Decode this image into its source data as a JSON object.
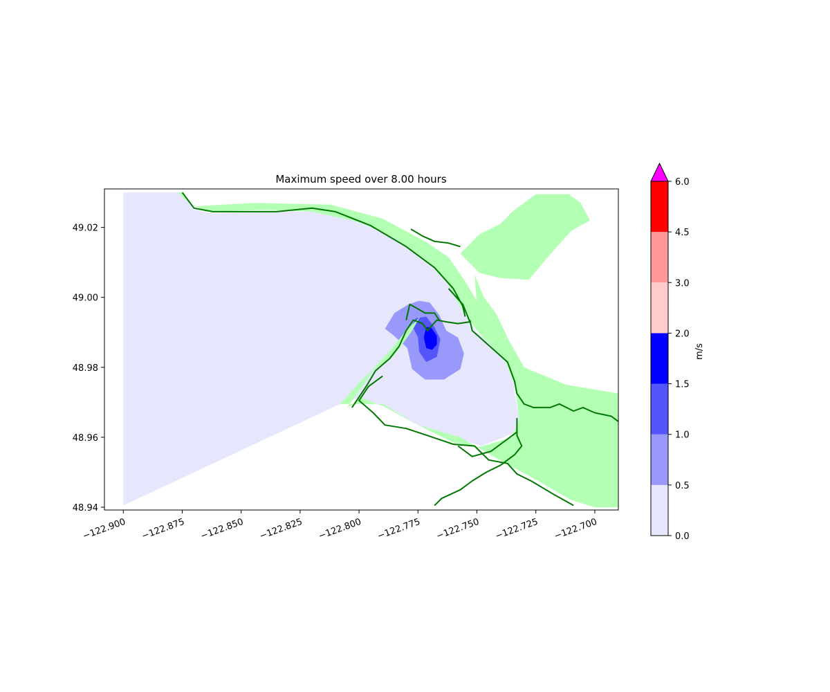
{
  "chart_data": {
    "type": "heatmap",
    "title": "Maximum speed over 8.00 hours",
    "xlabel": "",
    "ylabel": "",
    "xlim": [
      -122.908,
      -122.69
    ],
    "ylim": [
      48.9392,
      49.031
    ],
    "x_ticks": [
      -122.9,
      -122.875,
      -122.85,
      -122.825,
      -122.8,
      -122.775,
      -122.75,
      -122.725,
      -122.7
    ],
    "x_tick_labels": [
      "−122.900",
      "−122.875",
      "−122.850",
      "−122.825",
      "−122.800",
      "−122.775",
      "−122.750",
      "−122.725",
      "−122.700"
    ],
    "y_ticks": [
      48.94,
      48.96,
      48.98,
      49.0,
      49.02
    ],
    "y_tick_labels": [
      "48.94",
      "48.96",
      "48.98",
      "49.00",
      "49.02"
    ],
    "grid": false,
    "colorbar": {
      "label": "m/s",
      "boundaries": [
        0.0,
        0.5,
        1.0,
        1.5,
        2.0,
        3.0,
        4.5,
        6.0
      ],
      "tick_labels": [
        "0.0",
        "0.5",
        "1.0",
        "1.5",
        "2.0",
        "3.0",
        "4.5",
        "6.0"
      ],
      "colors": [
        "#e6e6fc",
        "#9999fc",
        "#5555fc",
        "#0000ff",
        "#ffcccc",
        "#ff9999",
        "#ff0000"
      ],
      "extend_color": "#ff00ff"
    },
    "land_color": "#b3ffb3",
    "shoreline_color": "#007700",
    "levels": [
      {
        "range": "0.0-0.5",
        "color": "#e6e6fc",
        "polygon": [
          [
            -122.9,
            49.03
          ],
          [
            -122.875,
            49.03
          ],
          [
            -122.87,
            49.025
          ],
          [
            -122.862,
            49.024
          ],
          [
            -122.835,
            49.0245
          ],
          [
            -122.81,
            49.0245
          ],
          [
            -122.79,
            49.0205
          ],
          [
            -122.775,
            49.0135
          ],
          [
            -122.766,
            49.0085
          ],
          [
            -122.76,
            49.0025
          ],
          [
            -122.755,
            48.995
          ],
          [
            -122.75,
            48.99
          ],
          [
            -122.735,
            48.9815
          ],
          [
            -122.734,
            48.9725
          ],
          [
            -122.732,
            48.9655
          ],
          [
            -122.733,
            48.9615
          ],
          [
            -122.748,
            48.9575
          ],
          [
            -122.775,
            48.9635
          ],
          [
            -122.79,
            48.969
          ],
          [
            -122.802,
            48.971
          ],
          [
            -122.808,
            48.9695
          ],
          [
            -122.9,
            48.9405
          ]
        ]
      },
      {
        "range": "0.5-1.0",
        "color": "#9999fc",
        "polygon": [
          [
            -122.789,
            48.991
          ],
          [
            -122.785,
            48.9955
          ],
          [
            -122.779,
            48.998
          ],
          [
            -122.7745,
            48.999
          ],
          [
            -122.77,
            48.9985
          ],
          [
            -122.766,
            48.995
          ],
          [
            -122.763,
            48.9905
          ],
          [
            -122.758,
            48.9885
          ],
          [
            -122.7555,
            48.984
          ],
          [
            -122.757,
            48.9795
          ],
          [
            -122.764,
            48.9765
          ],
          [
            -122.772,
            48.9765
          ],
          [
            -122.7775,
            48.9795
          ],
          [
            -122.7795,
            48.9855
          ],
          [
            -122.786,
            48.9895
          ]
        ]
      },
      {
        "range": "1.0-1.5",
        "color": "#5555fc",
        "polygon": [
          [
            -122.776,
            48.994
          ],
          [
            -122.7715,
            48.9945
          ],
          [
            -122.768,
            48.9915
          ],
          [
            -122.7655,
            48.988
          ],
          [
            -122.767,
            48.983
          ],
          [
            -122.7715,
            48.9815
          ],
          [
            -122.7745,
            48.9845
          ],
          [
            -122.775,
            48.9885
          ],
          [
            -122.7775,
            48.992
          ]
        ]
      },
      {
        "range": "1.5-2.0",
        "color": "#0000ff",
        "polygon": [
          [
            -122.7715,
            48.9915
          ],
          [
            -122.7695,
            48.9915
          ],
          [
            -122.767,
            48.989
          ],
          [
            -122.767,
            48.9865
          ],
          [
            -122.769,
            48.985
          ],
          [
            -122.7715,
            48.9855
          ],
          [
            -122.7725,
            48.9885
          ]
        ]
      }
    ],
    "land_regions": [
      [
        [
          -122.875,
          49.03
        ],
        [
          -122.87,
          49.026
        ],
        [
          -122.845,
          49.027
        ],
        [
          -122.812,
          49.0265
        ],
        [
          -122.79,
          49.0225
        ],
        [
          -122.772,
          49.016
        ],
        [
          -122.762,
          49.0115
        ],
        [
          -122.755,
          49.0045
        ],
        [
          -122.75,
          48.999
        ],
        [
          -122.74,
          48.992
        ],
        [
          -122.73,
          48.98
        ],
        [
          -122.712,
          48.975
        ],
        [
          -122.69,
          48.9725
        ],
        [
          -122.69,
          48.94
        ],
        [
          -122.7,
          48.94
        ],
        [
          -122.71,
          48.942
        ],
        [
          -122.724,
          48.9475
        ],
        [
          -122.743,
          48.9545
        ],
        [
          -122.757,
          48.96
        ],
        [
          -122.775,
          48.9635
        ],
        [
          -122.79,
          48.969
        ],
        [
          -122.8,
          48.9715
        ],
        [
          -122.802,
          48.9695
        ],
        [
          -122.805,
          48.9685
        ],
        [
          -122.794,
          48.979
        ],
        [
          -122.785,
          48.9835
        ],
        [
          -122.778,
          48.99
        ],
        [
          -122.774,
          48.9945
        ],
        [
          -122.78,
          48.9905
        ],
        [
          -122.786,
          48.9855
        ],
        [
          -122.794,
          48.9795
        ],
        [
          -122.8,
          48.9755
        ],
        [
          -122.808,
          48.9695
        ],
        [
          -122.79,
          48.9695
        ],
        [
          -122.775,
          48.9635
        ],
        [
          -122.76,
          48.9585
        ],
        [
          -122.75,
          48.957
        ],
        [
          -122.735,
          48.96
        ],
        [
          -122.732,
          48.965
        ],
        [
          -122.734,
          48.975
        ],
        [
          -122.738,
          48.982
        ],
        [
          -122.75,
          48.9905
        ],
        [
          -122.758,
          48.9985
        ],
        [
          -122.762,
          49.0035
        ],
        [
          -122.77,
          49.0095
        ],
        [
          -122.785,
          49.017
        ],
        [
          -122.8,
          49.0215
        ],
        [
          -122.82,
          49.0245
        ],
        [
          -122.84,
          49.025
        ],
        [
          -122.865,
          49.0245
        ],
        [
          -122.872,
          49.027
        ],
        [
          -122.877,
          49.03
        ]
      ],
      [
        [
          -122.757,
          49.0125
        ],
        [
          -122.749,
          49.018
        ],
        [
          -122.74,
          49.021
        ],
        [
          -122.735,
          49.0245
        ],
        [
          -122.725,
          49.0295
        ],
        [
          -122.711,
          49.0295
        ],
        [
          -122.706,
          49.027
        ],
        [
          -122.702,
          49.022
        ],
        [
          -122.71,
          49.019
        ],
        [
          -122.72,
          49.0115
        ],
        [
          -122.728,
          49.005
        ],
        [
          -122.74,
          49.0055
        ],
        [
          -122.749,
          49.007
        ]
      ],
      [
        [
          -122.751,
          49.0065
        ],
        [
          -122.747,
          49.0
        ],
        [
          -122.742,
          48.9955
        ],
        [
          -122.738,
          48.99
        ],
        [
          -122.735,
          48.9845
        ],
        [
          -122.74,
          48.986
        ],
        [
          -122.745,
          48.991
        ],
        [
          -122.75,
          48.998
        ]
      ]
    ],
    "shorelines": [
      [
        [
          -122.875,
          49.03
        ],
        [
          -122.87,
          49.0255
        ],
        [
          -122.862,
          49.0245
        ],
        [
          -122.835,
          49.0245
        ],
        [
          -122.82,
          49.0255
        ],
        [
          -122.81,
          49.0245
        ],
        [
          -122.795,
          49.0205
        ],
        [
          -122.78,
          49.0145
        ],
        [
          -122.768,
          49.0085
        ],
        [
          -122.76,
          49.0025
        ],
        [
          -122.756,
          48.9975
        ],
        [
          -122.755,
          48.9945
        ]
      ],
      [
        [
          -122.778,
          49.0195
        ],
        [
          -122.773,
          49.0175
        ],
        [
          -122.768,
          49.016
        ],
        [
          -122.762,
          49.0155
        ],
        [
          -122.757,
          49.0145
        ]
      ],
      [
        [
          -122.803,
          48.9685
        ],
        [
          -122.797,
          48.9745
        ],
        [
          -122.793,
          48.979
        ],
        [
          -122.787,
          48.9825
        ],
        [
          -122.783,
          48.986
        ],
        [
          -122.78,
          48.9905
        ],
        [
          -122.777,
          48.9935
        ],
        [
          -122.773,
          48.9925
        ],
        [
          -122.771,
          48.9905
        ],
        [
          -122.767,
          48.9935
        ],
        [
          -122.763,
          48.993
        ],
        [
          -122.758,
          48.9925
        ],
        [
          -122.753,
          48.993
        ],
        [
          -122.756,
          48.998
        ],
        [
          -122.762,
          49.0025
        ]
      ],
      [
        [
          -122.753,
          48.9935
        ],
        [
          -122.752,
          48.9905
        ],
        [
          -122.747,
          48.9875
        ],
        [
          -122.737,
          48.9815
        ],
        [
          -122.734,
          48.976
        ],
        [
          -122.733,
          48.9725
        ],
        [
          -122.73,
          48.9695
        ],
        [
          -122.726,
          48.9685
        ],
        [
          -122.719,
          48.9685
        ],
        [
          -122.715,
          48.9695
        ],
        [
          -122.709,
          48.9675
        ],
        [
          -122.705,
          48.9685
        ],
        [
          -122.7,
          48.967
        ],
        [
          -122.693,
          48.966
        ],
        [
          -122.69,
          48.9645
        ]
      ],
      [
        [
          -122.79,
          48.9775
        ],
        [
          -122.796,
          48.9745
        ],
        [
          -122.8,
          48.9705
        ],
        [
          -122.794,
          48.967
        ],
        [
          -122.789,
          48.9635
        ],
        [
          -122.78,
          48.9625
        ],
        [
          -122.771,
          48.9605
        ],
        [
          -122.76,
          48.958
        ],
        [
          -122.751,
          48.9575
        ],
        [
          -122.745,
          48.9535
        ],
        [
          -122.737,
          48.9525
        ],
        [
          -122.733,
          48.9495
        ],
        [
          -122.727,
          48.9475
        ],
        [
          -122.717,
          48.9435
        ],
        [
          -122.709,
          48.9405
        ]
      ],
      [
        [
          -122.733,
          48.9655
        ],
        [
          -122.733,
          48.9605
        ],
        [
          -122.731,
          48.9575
        ],
        [
          -122.734,
          48.955
        ],
        [
          -122.74,
          48.952
        ],
        [
          -122.746,
          48.95
        ],
        [
          -122.752,
          48.9475
        ],
        [
          -122.757,
          48.945
        ],
        [
          -122.765,
          48.9425
        ],
        [
          -122.768,
          48.9405
        ]
      ],
      [
        [
          -122.733,
          48.9615
        ],
        [
          -122.744,
          48.956
        ],
        [
          -122.752,
          48.9545
        ],
        [
          -122.758,
          48.9575
        ]
      ],
      [
        [
          -122.78,
          48.9935
        ],
        [
          -122.7785,
          48.998
        ],
        [
          -122.7745,
          48.9965
        ],
        [
          -122.772,
          48.9955
        ],
        [
          -122.768,
          48.9955
        ],
        [
          -122.766,
          48.9935
        ]
      ]
    ]
  }
}
